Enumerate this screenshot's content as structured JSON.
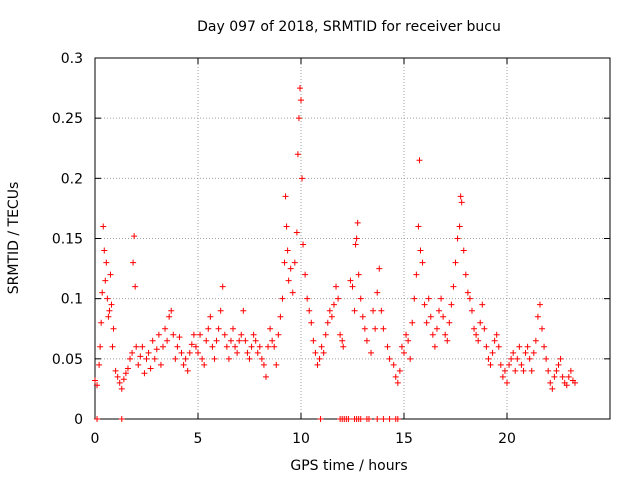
{
  "chart_data": {
    "type": "scatter",
    "title": "Day 097 of 2018, SRMTID for receiver bucu",
    "xlabel": "GPS time / hours",
    "ylabel": "SRMTID / TECUs",
    "xlim": [
      0,
      25
    ],
    "ylim": [
      0,
      0.3
    ],
    "xticks": [
      0,
      5,
      10,
      15,
      20
    ],
    "xtick_labels": [
      "0",
      "5",
      "10",
      "15",
      "20"
    ],
    "yticks": [
      0,
      0.05,
      0.1,
      0.15,
      0.2,
      0.25,
      0.3
    ],
    "ytick_labels": [
      "0",
      "0.05",
      "0.1",
      "0.15",
      "0.2",
      "0.25",
      "0.3"
    ],
    "grid": true,
    "marker": "plus",
    "series": [
      {
        "name": "SRMTID",
        "color": "#ff0000",
        "points": [
          [
            0.0,
            0.032
          ],
          [
            0.1,
            0.028
          ],
          [
            0.2,
            0.045
          ],
          [
            0.25,
            0.06
          ],
          [
            0.3,
            0.08
          ],
          [
            0.35,
            0.105
          ],
          [
            0.4,
            0.16
          ],
          [
            0.45,
            0.14
          ],
          [
            0.5,
            0.115
          ],
          [
            0.55,
            0.13
          ],
          [
            0.6,
            0.1
          ],
          [
            0.65,
            0.085
          ],
          [
            0.7,
            0.09
          ],
          [
            0.75,
            0.12
          ],
          [
            0.8,
            0.095
          ],
          [
            0.85,
            0.06
          ],
          [
            0.9,
            0.075
          ],
          [
            1.0,
            0.04
          ],
          [
            1.1,
            0.035
          ],
          [
            1.2,
            0.03
          ],
          [
            1.3,
            0.025
          ],
          [
            1.4,
            0.033
          ],
          [
            1.5,
            0.038
          ],
          [
            1.6,
            0.042
          ],
          [
            1.7,
            0.05
          ],
          [
            1.8,
            0.055
          ],
          [
            1.85,
            0.13
          ],
          [
            1.9,
            0.152
          ],
          [
            1.95,
            0.11
          ],
          [
            2.0,
            0.06
          ],
          [
            2.1,
            0.045
          ],
          [
            2.2,
            0.052
          ],
          [
            2.3,
            0.06
          ],
          [
            2.4,
            0.038
          ],
          [
            2.5,
            0.05
          ],
          [
            2.6,
            0.055
          ],
          [
            2.7,
            0.042
          ],
          [
            2.8,
            0.065
          ],
          [
            2.9,
            0.05
          ],
          [
            3.0,
            0.058
          ],
          [
            3.1,
            0.07
          ],
          [
            3.2,
            0.045
          ],
          [
            3.3,
            0.06
          ],
          [
            3.4,
            0.075
          ],
          [
            3.5,
            0.065
          ],
          [
            3.6,
            0.085
          ],
          [
            3.7,
            0.09
          ],
          [
            3.8,
            0.07
          ],
          [
            3.9,
            0.05
          ],
          [
            4.0,
            0.06
          ],
          [
            4.1,
            0.068
          ],
          [
            4.2,
            0.055
          ],
          [
            4.3,
            0.045
          ],
          [
            4.4,
            0.05
          ],
          [
            4.5,
            0.04
          ],
          [
            4.6,
            0.055
          ],
          [
            4.7,
            0.062
          ],
          [
            4.8,
            0.07
          ],
          [
            4.9,
            0.06
          ],
          [
            5.0,
            0.055
          ],
          [
            5.1,
            0.07
          ],
          [
            5.2,
            0.05
          ],
          [
            5.3,
            0.045
          ],
          [
            5.4,
            0.065
          ],
          [
            5.5,
            0.075
          ],
          [
            5.6,
            0.085
          ],
          [
            5.7,
            0.06
          ],
          [
            5.8,
            0.05
          ],
          [
            5.9,
            0.065
          ],
          [
            6.0,
            0.075
          ],
          [
            6.1,
            0.09
          ],
          [
            6.2,
            0.11
          ],
          [
            6.3,
            0.07
          ],
          [
            6.4,
            0.06
          ],
          [
            6.5,
            0.05
          ],
          [
            6.6,
            0.065
          ],
          [
            6.7,
            0.075
          ],
          [
            6.8,
            0.06
          ],
          [
            6.9,
            0.055
          ],
          [
            7.0,
            0.065
          ],
          [
            7.1,
            0.07
          ],
          [
            7.2,
            0.09
          ],
          [
            7.3,
            0.065
          ],
          [
            7.4,
            0.055
          ],
          [
            7.5,
            0.05
          ],
          [
            7.6,
            0.06
          ],
          [
            7.7,
            0.07
          ],
          [
            7.8,
            0.065
          ],
          [
            7.9,
            0.055
          ],
          [
            8.0,
            0.06
          ],
          [
            8.1,
            0.05
          ],
          [
            8.2,
            0.045
          ],
          [
            8.3,
            0.035
          ],
          [
            8.4,
            0.06
          ],
          [
            8.5,
            0.075
          ],
          [
            8.6,
            0.065
          ],
          [
            8.7,
            0.06
          ],
          [
            8.8,
            0.045
          ],
          [
            8.9,
            0.07
          ],
          [
            9.0,
            0.085
          ],
          [
            9.1,
            0.1
          ],
          [
            9.2,
            0.13
          ],
          [
            9.25,
            0.185
          ],
          [
            9.3,
            0.16
          ],
          [
            9.35,
            0.14
          ],
          [
            9.4,
            0.115
          ],
          [
            9.5,
            0.125
          ],
          [
            9.6,
            0.105
          ],
          [
            9.7,
            0.13
          ],
          [
            9.8,
            0.155
          ],
          [
            9.85,
            0.22
          ],
          [
            9.9,
            0.25
          ],
          [
            9.95,
            0.275
          ],
          [
            10.0,
            0.265
          ],
          [
            10.05,
            0.2
          ],
          [
            10.1,
            0.145
          ],
          [
            10.2,
            0.12
          ],
          [
            10.3,
            0.1
          ],
          [
            10.4,
            0.09
          ],
          [
            10.5,
            0.08
          ],
          [
            10.6,
            0.065
          ],
          [
            10.7,
            0.055
          ],
          [
            10.8,
            0.045
          ],
          [
            10.9,
            0.05
          ],
          [
            11.0,
            0.06
          ],
          [
            11.1,
            0.055
          ],
          [
            11.2,
            0.07
          ],
          [
            11.3,
            0.08
          ],
          [
            11.4,
            0.09
          ],
          [
            11.5,
            0.085
          ],
          [
            11.6,
            0.095
          ],
          [
            11.7,
            0.11
          ],
          [
            11.8,
            0.1
          ],
          [
            11.9,
            0.07
          ],
          [
            12.0,
            0.065
          ],
          [
            12.05,
            0.06
          ],
          [
            12.4,
            0.115
          ],
          [
            12.5,
            0.11
          ],
          [
            12.6,
            0.09
          ],
          [
            12.65,
            0.145
          ],
          [
            12.7,
            0.15
          ],
          [
            12.75,
            0.163
          ],
          [
            12.8,
            0.12
          ],
          [
            12.9,
            0.1
          ],
          [
            13.0,
            0.085
          ],
          [
            13.1,
            0.075
          ],
          [
            13.2,
            0.065
          ],
          [
            13.4,
            0.055
          ],
          [
            13.5,
            0.09
          ],
          [
            13.6,
            0.075
          ],
          [
            13.7,
            0.105
          ],
          [
            13.8,
            0.125
          ],
          [
            13.9,
            0.09
          ],
          [
            14.0,
            0.075
          ],
          [
            14.2,
            0.06
          ],
          [
            14.3,
            0.05
          ],
          [
            14.5,
            0.045
          ],
          [
            14.6,
            0.035
          ],
          [
            14.7,
            0.03
          ],
          [
            14.8,
            0.04
          ],
          [
            14.9,
            0.06
          ],
          [
            15.0,
            0.055
          ],
          [
            15.1,
            0.07
          ],
          [
            15.2,
            0.065
          ],
          [
            15.3,
            0.05
          ],
          [
            15.4,
            0.08
          ],
          [
            15.5,
            0.1
          ],
          [
            15.6,
            0.12
          ],
          [
            15.7,
            0.16
          ],
          [
            15.75,
            0.215
          ],
          [
            15.8,
            0.14
          ],
          [
            15.9,
            0.13
          ],
          [
            16.0,
            0.095
          ],
          [
            16.1,
            0.08
          ],
          [
            16.2,
            0.1
          ],
          [
            16.3,
            0.085
          ],
          [
            16.4,
            0.07
          ],
          [
            16.5,
            0.06
          ],
          [
            16.6,
            0.075
          ],
          [
            16.7,
            0.09
          ],
          [
            16.8,
            0.1
          ],
          [
            16.9,
            0.085
          ],
          [
            17.0,
            0.07
          ],
          [
            17.1,
            0.065
          ],
          [
            17.2,
            0.08
          ],
          [
            17.3,
            0.095
          ],
          [
            17.4,
            0.11
          ],
          [
            17.5,
            0.13
          ],
          [
            17.6,
            0.15
          ],
          [
            17.7,
            0.16
          ],
          [
            17.75,
            0.185
          ],
          [
            17.8,
            0.18
          ],
          [
            17.9,
            0.14
          ],
          [
            18.0,
            0.12
          ],
          [
            18.1,
            0.105
          ],
          [
            18.2,
            0.1
          ],
          [
            18.3,
            0.09
          ],
          [
            18.4,
            0.075
          ],
          [
            18.5,
            0.07
          ],
          [
            18.6,
            0.065
          ],
          [
            18.7,
            0.08
          ],
          [
            18.8,
            0.095
          ],
          [
            18.9,
            0.075
          ],
          [
            19.0,
            0.06
          ],
          [
            19.1,
            0.05
          ],
          [
            19.2,
            0.045
          ],
          [
            19.3,
            0.055
          ],
          [
            19.4,
            0.065
          ],
          [
            19.5,
            0.07
          ],
          [
            19.6,
            0.06
          ],
          [
            19.7,
            0.045
          ],
          [
            19.8,
            0.035
          ],
          [
            19.9,
            0.04
          ],
          [
            20.0,
            0.03
          ],
          [
            20.1,
            0.045
          ],
          [
            20.2,
            0.05
          ],
          [
            20.3,
            0.055
          ],
          [
            20.4,
            0.04
          ],
          [
            20.5,
            0.05
          ],
          [
            20.6,
            0.06
          ],
          [
            20.7,
            0.045
          ],
          [
            20.8,
            0.04
          ],
          [
            20.9,
            0.055
          ],
          [
            21.0,
            0.06
          ],
          [
            21.1,
            0.05
          ],
          [
            21.2,
            0.04
          ],
          [
            21.3,
            0.055
          ],
          [
            21.4,
            0.065
          ],
          [
            21.5,
            0.085
          ],
          [
            21.6,
            0.095
          ],
          [
            21.7,
            0.075
          ],
          [
            21.8,
            0.06
          ],
          [
            21.9,
            0.05
          ],
          [
            22.0,
            0.04
          ],
          [
            22.1,
            0.03
          ],
          [
            22.2,
            0.025
          ],
          [
            22.3,
            0.035
          ],
          [
            22.4,
            0.04
          ],
          [
            22.5,
            0.045
          ],
          [
            22.6,
            0.05
          ],
          [
            22.7,
            0.035
          ],
          [
            22.8,
            0.03
          ],
          [
            22.9,
            0.028
          ],
          [
            23.0,
            0.035
          ],
          [
            23.1,
            0.04
          ],
          [
            23.2,
            0.032
          ],
          [
            23.3,
            0.03
          ],
          [
            0.1,
            0.0
          ],
          [
            1.3,
            0.0
          ],
          [
            10.95,
            0.0
          ],
          [
            11.9,
            0.0
          ],
          [
            12.0,
            0.0
          ],
          [
            12.1,
            0.0
          ],
          [
            12.2,
            0.0
          ],
          [
            12.3,
            0.0
          ],
          [
            12.6,
            0.0
          ],
          [
            12.7,
            0.0
          ],
          [
            12.8,
            0.0
          ],
          [
            12.9,
            0.0
          ],
          [
            13.2,
            0.0
          ],
          [
            13.3,
            0.0
          ],
          [
            13.7,
            0.0
          ],
          [
            14.0,
            0.0
          ],
          [
            14.3,
            0.0
          ],
          [
            14.6,
            0.0
          ],
          [
            14.7,
            0.0
          ]
        ]
      }
    ]
  }
}
